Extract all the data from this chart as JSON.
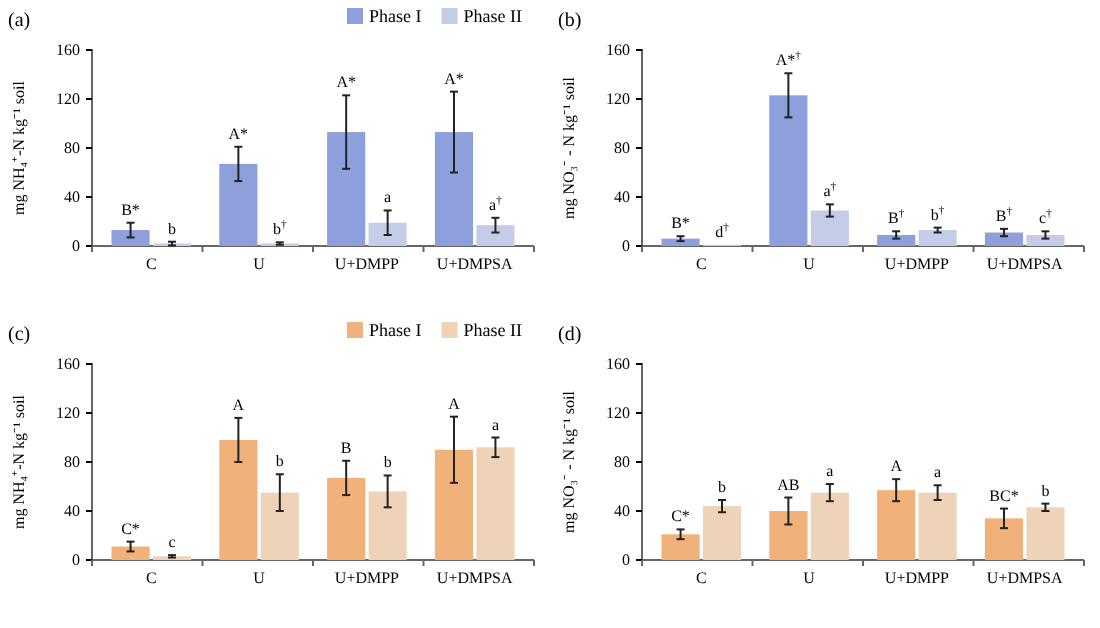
{
  "chart_data": [
    {
      "type": "bar",
      "title": "(a)",
      "ylabel": "mg NH₄⁺-N kg⁻¹ soil",
      "categories": [
        "C",
        "U",
        "U+DMPP",
        "U+DMPSA"
      ],
      "ylim": [
        0,
        160
      ],
      "yticks": [
        0,
        40,
        80,
        120,
        160
      ],
      "legend": "top right",
      "grid": false,
      "series": [
        {
          "name": "Phase I",
          "color": "#8ea0dc",
          "values": [
            13,
            67,
            93,
            93
          ],
          "errors": [
            6,
            14,
            30,
            33
          ],
          "value_labels": [
            "B*",
            "A*",
            "A*",
            "A*"
          ]
        },
        {
          "name": "Phase II",
          "color": "#c4cce8",
          "values": [
            2,
            2,
            19,
            17
          ],
          "errors": [
            1.5,
            1,
            10,
            6
          ],
          "value_labels": [
            "b",
            "b$^{†}$",
            "a",
            "a$^{†}$"
          ]
        }
      ]
    },
    {
      "type": "bar",
      "title": "(b)",
      "ylabel": "mg NO₃⁻ - N kg⁻¹ soil",
      "categories": [
        "C",
        "U",
        "U+DMPP",
        "U+DMPSA"
      ],
      "ylim": [
        0,
        160
      ],
      "yticks": [
        0,
        40,
        80,
        120,
        160
      ],
      "legend": false,
      "grid": false,
      "series": [
        {
          "color": "#8ea0dc",
          "values": [
            6,
            123,
            9,
            11
          ],
          "errors": [
            2,
            18,
            3,
            3
          ],
          "value_labels": [
            "B*",
            "A*$^{†}$",
            "B$^{†}$",
            "B$^{†}$"
          ]
        },
        {
          "color": "#c4cce8",
          "values": [
            1,
            29,
            13,
            9
          ],
          "errors": [
            null,
            5,
            2,
            3
          ],
          "value_labels": [
            "d$^{†}$",
            "a$^{†}$",
            "b$^{†}$",
            "c$^{†}$"
          ]
        }
      ]
    },
    {
      "type": "bar",
      "title": "(c)",
      "ylabel": "mg NH₄⁺-N kg⁻¹ soil",
      "categories": [
        "C",
        "U",
        "U+DMPP",
        "U+DMPSA"
      ],
      "ylim": [
        0,
        160
      ],
      "yticks": [
        0,
        40,
        80,
        120,
        160
      ],
      "legend": "top right",
      "grid": false,
      "series": [
        {
          "name": "Phase I",
          "color": "#f0b27a",
          "values": [
            11,
            98,
            67,
            90
          ],
          "errors": [
            4,
            18,
            14,
            27
          ],
          "value_labels": [
            "C*",
            "A",
            "B",
            "A"
          ]
        },
        {
          "name": "Phase II",
          "color": "#eed3b8",
          "values": [
            3,
            55,
            56,
            92
          ],
          "errors": [
            1,
            15,
            13,
            8
          ],
          "value_labels": [
            "c",
            "b",
            "b",
            "a"
          ]
        }
      ]
    },
    {
      "type": "bar",
      "title": "(d)",
      "ylabel": "mg NO₃⁻ - N kg⁻¹ soil",
      "categories": [
        "C",
        "U",
        "U+DMPP",
        "U+DMPSA"
      ],
      "ylim": [
        0,
        160
      ],
      "yticks": [
        0,
        40,
        80,
        120,
        160
      ],
      "legend": false,
      "grid": false,
      "series": [
        {
          "color": "#f0b27a",
          "values": [
            21,
            40,
            57,
            34
          ],
          "errors": [
            4,
            11,
            9,
            8
          ],
          "value_labels": [
            "C*",
            "AB",
            "A",
            "BC*"
          ]
        },
        {
          "color": "#eed3b8",
          "values": [
            44,
            55,
            55,
            43
          ],
          "errors": [
            5,
            7,
            6,
            3
          ],
          "value_labels": [
            "b",
            "a",
            "a",
            "b"
          ]
        }
      ]
    }
  ]
}
